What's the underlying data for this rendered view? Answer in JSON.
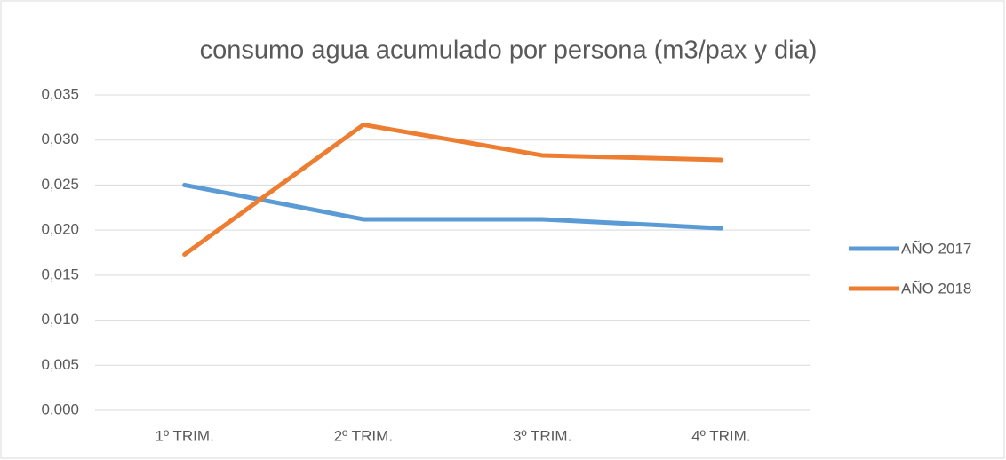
{
  "chart_data": {
    "type": "line",
    "title": "consumo agua acumulado por persona (m3/pax y dia)",
    "categories": [
      "1º TRIM.",
      "2º TRIM.",
      "3º TRIM.",
      "4º TRIM."
    ],
    "series": [
      {
        "name": "AÑO 2017",
        "color": "#5b9bd5",
        "values": [
          0.025,
          0.0212,
          0.0212,
          0.0202
        ]
      },
      {
        "name": "AÑO 2018",
        "color": "#ed7d31",
        "values": [
          0.0173,
          0.0317,
          0.0283,
          0.0278
        ]
      }
    ],
    "ylim": [
      0,
      0.035
    ],
    "yticks": [
      {
        "value": 0,
        "label": "0,000"
      },
      {
        "value": 0.005,
        "label": "0,005"
      },
      {
        "value": 0.01,
        "label": "0,010"
      },
      {
        "value": 0.015,
        "label": "0,015"
      },
      {
        "value": 0.02,
        "label": "0,020"
      },
      {
        "value": 0.025,
        "label": "0,025"
      },
      {
        "value": 0.03,
        "label": "0,030"
      },
      {
        "value": 0.035,
        "label": "0,035"
      }
    ],
    "grid": true,
    "legend": "right"
  }
}
